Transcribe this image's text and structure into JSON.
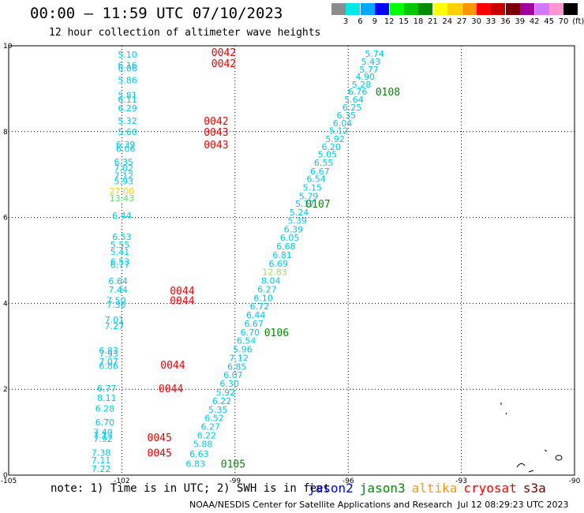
{
  "header": {
    "title": "00:00 – 11:59 UTC 07/10/2023",
    "subtitle": "12 hour collection of altimeter wave heights"
  },
  "colorbar": {
    "unit": "(ft)",
    "bins": [
      {
        "label": "3",
        "color": "#8c8c8c"
      },
      {
        "label": "6",
        "color": "#00e8e8"
      },
      {
        "label": "9",
        "color": "#00a8ff"
      },
      {
        "label": "12",
        "color": "#0000ff"
      },
      {
        "label": "15",
        "color": "#00ff00"
      },
      {
        "label": "18",
        "color": "#00c800"
      },
      {
        "label": "21",
        "color": "#008c00"
      },
      {
        "label": "24",
        "color": "#ffff00"
      },
      {
        "label": "27",
        "color": "#ffd000"
      },
      {
        "label": "30",
        "color": "#ff9600"
      },
      {
        "label": "33",
        "color": "#ff0000"
      },
      {
        "label": "36",
        "color": "#c80000"
      },
      {
        "label": "39",
        "color": "#780000"
      },
      {
        "label": "42",
        "color": "#a000a0"
      },
      {
        "label": "45",
        "color": "#d278ff"
      },
      {
        "label": "70",
        "color": "#ff96d2"
      },
      {
        "label": "",
        "color": "#000000"
      }
    ]
  },
  "map": {
    "lon_range": [
      -105,
      -90
    ],
    "lat_range": [
      0,
      10
    ],
    "x_ticks": [
      "-105",
      "-102",
      "-99",
      "-96",
      "-93",
      "-90"
    ],
    "y_ticks": [
      "0",
      "2",
      "4",
      "6",
      "8",
      "10"
    ]
  },
  "observations": [
    {
      "v": "5.10",
      "lon": -101.85,
      "lat": 9.8,
      "c": "#00c8e8"
    },
    {
      "v": "6.16",
      "lon": -101.85,
      "lat": 9.55,
      "c": "#00c8e8"
    },
    {
      "v": "6.06",
      "lon": -101.85,
      "lat": 9.48,
      "c": "#00c8e8"
    },
    {
      "v": "5.86",
      "lon": -101.85,
      "lat": 9.2,
      "c": "#00c8e8"
    },
    {
      "v": "5.81",
      "lon": -101.85,
      "lat": 8.85,
      "c": "#00c8e8"
    },
    {
      "v": "6.11",
      "lon": -101.85,
      "lat": 8.75,
      "c": "#00c8e8"
    },
    {
      "v": "6.29",
      "lon": -101.85,
      "lat": 8.55,
      "c": "#00c8e8"
    },
    {
      "v": "5.32",
      "lon": -101.85,
      "lat": 8.25,
      "c": "#00c8e8"
    },
    {
      "v": "5.60",
      "lon": -101.85,
      "lat": 8.0,
      "c": "#00c8e8"
    },
    {
      "v": "6.39",
      "lon": -101.9,
      "lat": 7.7,
      "c": "#00c8e8"
    },
    {
      "v": "6.06",
      "lon": -101.9,
      "lat": 7.6,
      "c": "#00c8e8"
    },
    {
      "v": "6.35",
      "lon": -101.95,
      "lat": 7.3,
      "c": "#00c8e8"
    },
    {
      "v": "7.02",
      "lon": -101.95,
      "lat": 7.15,
      "c": "#00c8e8"
    },
    {
      "v": "7.12",
      "lon": -101.95,
      "lat": 6.98,
      "c": "#00c8e8"
    },
    {
      "v": "5.93",
      "lon": -101.95,
      "lat": 6.85,
      "c": "#00c8e8"
    },
    {
      "v": "27.00",
      "lon": -102.0,
      "lat": 6.62,
      "c": "#ffd000"
    },
    {
      "v": "13.43",
      "lon": -102.0,
      "lat": 6.45,
      "c": "#66dd66"
    },
    {
      "v": "6.44",
      "lon": -102.0,
      "lat": 6.05,
      "c": "#00c8e8"
    },
    {
      "v": "6.53",
      "lon": -102.0,
      "lat": 5.55,
      "c": "#00c8e8"
    },
    {
      "v": "5.55",
      "lon": -102.05,
      "lat": 5.37,
      "c": "#00c8e8"
    },
    {
      "v": "5.41",
      "lon": -102.05,
      "lat": 5.2,
      "c": "#00c8e8"
    },
    {
      "v": "6.53",
      "lon": -102.05,
      "lat": 4.97,
      "c": "#00c8e8"
    },
    {
      "v": "6.77",
      "lon": -102.05,
      "lat": 4.9,
      "c": "#00c8e8"
    },
    {
      "v": "6.64",
      "lon": -102.1,
      "lat": 4.52,
      "c": "#00c8e8"
    },
    {
      "v": "7.44",
      "lon": -102.1,
      "lat": 4.32,
      "c": "#00c8e8"
    },
    {
      "v": "7.50",
      "lon": -102.15,
      "lat": 4.07,
      "c": "#00c8e8"
    },
    {
      "v": "7.36",
      "lon": -102.15,
      "lat": 3.97,
      "c": "#00c8e8"
    },
    {
      "v": "7.01",
      "lon": -102.2,
      "lat": 3.62,
      "c": "#00c8e8"
    },
    {
      "v": "7.27",
      "lon": -102.2,
      "lat": 3.47,
      "c": "#00c8e8"
    },
    {
      "v": "6.83",
      "lon": -102.35,
      "lat": 2.9,
      "c": "#00c8e8"
    },
    {
      "v": "7.93",
      "lon": -102.35,
      "lat": 2.82,
      "c": "#00c8e8"
    },
    {
      "v": "7.07",
      "lon": -102.35,
      "lat": 2.65,
      "c": "#00c8e8"
    },
    {
      "v": "6.86",
      "lon": -102.35,
      "lat": 2.55,
      "c": "#00c8e8"
    },
    {
      "v": "6.77",
      "lon": -102.4,
      "lat": 2.02,
      "c": "#00c8e8"
    },
    {
      "v": "8.11",
      "lon": -102.4,
      "lat": 1.8,
      "c": "#00c8e8"
    },
    {
      "v": "6.28",
      "lon": -102.45,
      "lat": 1.55,
      "c": "#00c8e8"
    },
    {
      "v": "6.70",
      "lon": -102.45,
      "lat": 1.23,
      "c": "#00c8e8"
    },
    {
      "v": "7.40",
      "lon": -102.5,
      "lat": 1.0,
      "c": "#00c8e8"
    },
    {
      "v": "7.13",
      "lon": -102.5,
      "lat": 0.93,
      "c": "#00c8e8"
    },
    {
      "v": "7.92",
      "lon": -102.5,
      "lat": 0.85,
      "c": "#00c8e8"
    },
    {
      "v": "7.38",
      "lon": -102.55,
      "lat": 0.52,
      "c": "#00c8e8"
    },
    {
      "v": "7.11",
      "lon": -102.55,
      "lat": 0.35,
      "c": "#00c8e8"
    },
    {
      "v": "7.22",
      "lon": -102.55,
      "lat": 0.15,
      "c": "#00c8e8"
    },
    {
      "v": "5.74",
      "lon": -95.3,
      "lat": 9.82,
      "c": "#00c8e8"
    },
    {
      "v": "5.43",
      "lon": -95.4,
      "lat": 9.63,
      "c": "#00c8e8"
    },
    {
      "v": "5.77",
      "lon": -95.45,
      "lat": 9.45,
      "c": "#00c8e8"
    },
    {
      "v": "4.90",
      "lon": -95.55,
      "lat": 9.28,
      "c": "#00c8e8"
    },
    {
      "v": "5.28",
      "lon": -95.65,
      "lat": 9.1,
      "c": "#00c8e8"
    },
    {
      "v": "6.76",
      "lon": -95.75,
      "lat": 8.93,
      "c": "#00c8e8"
    },
    {
      "v": "5.64",
      "lon": -95.85,
      "lat": 8.75,
      "c": "#00c8e8"
    },
    {
      "v": "6.25",
      "lon": -95.9,
      "lat": 8.57,
      "c": "#00c8e8"
    },
    {
      "v": "6.35",
      "lon": -96.05,
      "lat": 8.38,
      "c": "#00c8e8"
    },
    {
      "v": "6.04",
      "lon": -96.15,
      "lat": 8.2,
      "c": "#00c8e8"
    },
    {
      "v": "5.12",
      "lon": -96.25,
      "lat": 8.02,
      "c": "#00c8e8"
    },
    {
      "v": "5.92",
      "lon": -96.35,
      "lat": 7.83,
      "c": "#00c8e8"
    },
    {
      "v": "6.20",
      "lon": -96.45,
      "lat": 7.65,
      "c": "#00c8e8"
    },
    {
      "v": "5.05",
      "lon": -96.55,
      "lat": 7.47,
      "c": "#00c8e8"
    },
    {
      "v": "6.55",
      "lon": -96.65,
      "lat": 7.28,
      "c": "#00c8e8"
    },
    {
      "v": "6.67",
      "lon": -96.75,
      "lat": 7.08,
      "c": "#00c8e8"
    },
    {
      "v": "6.54",
      "lon": -96.85,
      "lat": 6.9,
      "c": "#00c8e8"
    },
    {
      "v": "5.15",
      "lon": -96.95,
      "lat": 6.7,
      "c": "#00c8e8"
    },
    {
      "v": "5.79",
      "lon": -97.05,
      "lat": 6.5,
      "c": "#00c8e8"
    },
    {
      "v": "5.17",
      "lon": -97.15,
      "lat": 6.32,
      "c": "#00c8e8"
    },
    {
      "v": "5.24",
      "lon": -97.3,
      "lat": 6.12,
      "c": "#00c8e8"
    },
    {
      "v": "5.39",
      "lon": -97.35,
      "lat": 5.93,
      "c": "#00c8e8"
    },
    {
      "v": "6.39",
      "lon": -97.45,
      "lat": 5.73,
      "c": "#00c8e8"
    },
    {
      "v": "6.05",
      "lon": -97.55,
      "lat": 5.53,
      "c": "#00c8e8"
    },
    {
      "v": "6.68",
      "lon": -97.65,
      "lat": 5.33,
      "c": "#00c8e8"
    },
    {
      "v": "6.81",
      "lon": -97.75,
      "lat": 5.13,
      "c": "#00c8e8"
    },
    {
      "v": "6.69",
      "lon": -97.85,
      "lat": 4.93,
      "c": "#00c8e8"
    },
    {
      "v": "12.83",
      "lon": -97.95,
      "lat": 4.73,
      "c": "#99dd66"
    },
    {
      "v": "8.04",
      "lon": -98.05,
      "lat": 4.53,
      "c": "#00c8e8"
    },
    {
      "v": "6.27",
      "lon": -98.15,
      "lat": 4.33,
      "c": "#00c8e8"
    },
    {
      "v": "6.10",
      "lon": -98.25,
      "lat": 4.13,
      "c": "#00c8e8"
    },
    {
      "v": "6.72",
      "lon": -98.35,
      "lat": 3.93,
      "c": "#00c8e8"
    },
    {
      "v": "6.44",
      "lon": -98.45,
      "lat": 3.73,
      "c": "#00c8e8"
    },
    {
      "v": "6.67",
      "lon": -98.5,
      "lat": 3.53,
      "c": "#00c8e8"
    },
    {
      "v": "6.70",
      "lon": -98.6,
      "lat": 3.33,
      "c": "#00c8e8"
    },
    {
      "v": "6.54",
      "lon": -98.7,
      "lat": 3.13,
      "c": "#00c8e8"
    },
    {
      "v": "5.96",
      "lon": -98.8,
      "lat": 2.93,
      "c": "#00c8e8"
    },
    {
      "v": "7.12",
      "lon": -98.9,
      "lat": 2.73,
      "c": "#00c8e8"
    },
    {
      "v": "6.85",
      "lon": -98.95,
      "lat": 2.53,
      "c": "#00c8e8"
    },
    {
      "v": "6.07",
      "lon": -99.05,
      "lat": 2.33,
      "c": "#00c8e8"
    },
    {
      "v": "6.30",
      "lon": -99.15,
      "lat": 2.13,
      "c": "#00c8e8"
    },
    {
      "v": "5.92",
      "lon": -99.25,
      "lat": 1.93,
      "c": "#00c8e8"
    },
    {
      "v": "6.22",
      "lon": -99.35,
      "lat": 1.73,
      "c": "#00c8e8"
    },
    {
      "v": "5.35",
      "lon": -99.45,
      "lat": 1.53,
      "c": "#00c8e8"
    },
    {
      "v": "6.52",
      "lon": -99.55,
      "lat": 1.33,
      "c": "#00c8e8"
    },
    {
      "v": "6.27",
      "lon": -99.65,
      "lat": 1.13,
      "c": "#00c8e8"
    },
    {
      "v": "6.22",
      "lon": -99.75,
      "lat": 0.93,
      "c": "#00c8e8"
    },
    {
      "v": "5.88",
      "lon": -99.85,
      "lat": 0.73,
      "c": "#00c8e8"
    },
    {
      "v": "6.63",
      "lon": -99.95,
      "lat": 0.5,
      "c": "#00c8e8"
    },
    {
      "v": "6.83",
      "lon": -100.05,
      "lat": 0.27,
      "c": "#00c8e8"
    }
  ],
  "pass_labels": [
    {
      "t": "0042",
      "lon": -99.3,
      "lat": 9.85,
      "c": "#ee0000"
    },
    {
      "t": "0042",
      "lon": -99.3,
      "lat": 9.6,
      "c": "#ee0000"
    },
    {
      "t": "0042",
      "lon": -99.5,
      "lat": 8.25,
      "c": "#ee0000"
    },
    {
      "t": "0043",
      "lon": -99.5,
      "lat": 8.0,
      "c": "#ee0000"
    },
    {
      "t": "0043",
      "lon": -99.5,
      "lat": 7.7,
      "c": "#ee0000"
    },
    {
      "t": "0044",
      "lon": -100.4,
      "lat": 4.3,
      "c": "#ee0000"
    },
    {
      "t": "0044",
      "lon": -100.4,
      "lat": 4.07,
      "c": "#ee0000"
    },
    {
      "t": "0044",
      "lon": -100.65,
      "lat": 2.57,
      "c": "#ee0000"
    },
    {
      "t": "0044",
      "lon": -100.7,
      "lat": 2.02,
      "c": "#ee0000"
    },
    {
      "t": "0045",
      "lon": -101.0,
      "lat": 0.88,
      "c": "#ee0000"
    },
    {
      "t": "0045",
      "lon": -101.0,
      "lat": 0.52,
      "c": "#ee0000"
    },
    {
      "t": "0108",
      "lon": -94.95,
      "lat": 8.93,
      "c": "#008c00"
    },
    {
      "t": "0107",
      "lon": -96.8,
      "lat": 6.32,
      "c": "#008c00"
    },
    {
      "t": "0106",
      "lon": -97.9,
      "lat": 3.33,
      "c": "#008c00"
    },
    {
      "t": "0105",
      "lon": -99.05,
      "lat": 0.27,
      "c": "#008c00"
    }
  ],
  "footer": {
    "note": "note: 1) Time is in UTC; 2) SWH is in feet",
    "legend": [
      {
        "name": "jason2",
        "color": "#0000ff"
      },
      {
        "name": "jason3",
        "color": "#008c00"
      },
      {
        "name": "altika",
        "color": "#ff9600"
      },
      {
        "name": "cryosat",
        "color": "#ff0000"
      },
      {
        "name": "s3a",
        "color": "#780000"
      }
    ],
    "credit": "NOAA/NESDIS Center for Satellite Applications and Research",
    "generated": "Jul 12 08:29:23 UTC 2023"
  }
}
